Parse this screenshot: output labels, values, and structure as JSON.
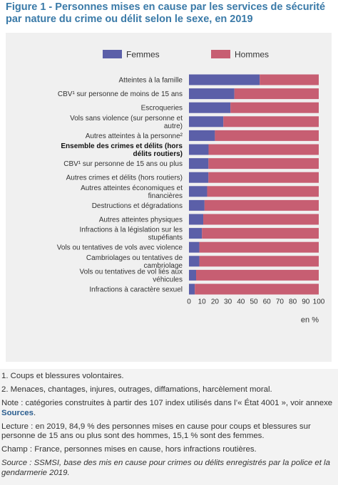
{
  "figure": {
    "title": "Figure 1 - Personnes mises en cause par les services de sécurité par nature du crime ou délit selon le sexe, en 2019"
  },
  "chart_data": {
    "type": "bar",
    "orientation": "horizontal",
    "stacked": true,
    "percent_stacked": true,
    "categories": [
      [
        "Atteintes à la famille"
      ],
      [
        "CBV¹ sur personne de moins de 15 ans"
      ],
      [
        "Escroqueries"
      ],
      [
        "Vols sans violence (sur personne et",
        "autre)"
      ],
      [
        "Autres atteintes à la personne²"
      ],
      [
        "Ensemble des crimes et délits (hors",
        "délits routiers)"
      ],
      [
        "CBV¹ sur personne de 15 ans ou plus"
      ],
      [
        "Autres crimes et délits (hors routiers)"
      ],
      [
        "Autres atteintes économiques et",
        "financières"
      ],
      [
        "Destructions et dégradations"
      ],
      [
        "Autres atteintes physiques"
      ],
      [
        "Infractions à la législation sur les",
        "stupéfiants"
      ],
      [
        "Vols ou tentatives de vols avec violence"
      ],
      [
        "Cambriolages ou tentatives de",
        "cambriolage"
      ],
      [
        "Vols ou tentatives de vol liés aux",
        "véhicules"
      ],
      [
        "Infractions à caractère sexuel"
      ]
    ],
    "bold_category_index": 5,
    "series": [
      {
        "name": "Femmes",
        "color": "#5b5fa8",
        "values": [
          54.5,
          35,
          32,
          26.5,
          20,
          15.1,
          15,
          15,
          14,
          12,
          11,
          10,
          8,
          8,
          5.5,
          4.5
        ]
      },
      {
        "name": "Hommes",
        "color": "#c75e72",
        "values": [
          45.5,
          65,
          68,
          73.5,
          80,
          84.9,
          85,
          85,
          86,
          88,
          89,
          90,
          92,
          92,
          94.5,
          95.5
        ]
      }
    ],
    "xlim": [
      0,
      100
    ],
    "xticks": [
      "0",
      "10",
      "20",
      "30",
      "40",
      "50",
      "60",
      "70",
      "80",
      "90",
      "100"
    ],
    "x_unit_label": "en %",
    "legend_position": "top",
    "grid": false
  },
  "notes": {
    "n1": "1. Coups et blessures volontaires.",
    "n2": "2. Menaces, chantages, injures, outrages, diffamations, harcèlement moral.",
    "note_text": "Note : catégories construites à partir des 107 index utilisés dans l’« État 4001 », voir annexe ",
    "note_link": "Sources",
    "note_end": ".",
    "lecture": "Lecture : en 2019, 84,9 % des personnes mises en cause pour coups et blessures sur personne de 15 ans ou plus sont des hommes, 15,1 % sont des femmes.",
    "champ": "Champ : France, personnes mises en cause, hors infractions routières.",
    "source": "Source : SSMSI, base des mis en cause pour crimes ou délits enregistrés par la police et la gendarmerie 2019."
  }
}
